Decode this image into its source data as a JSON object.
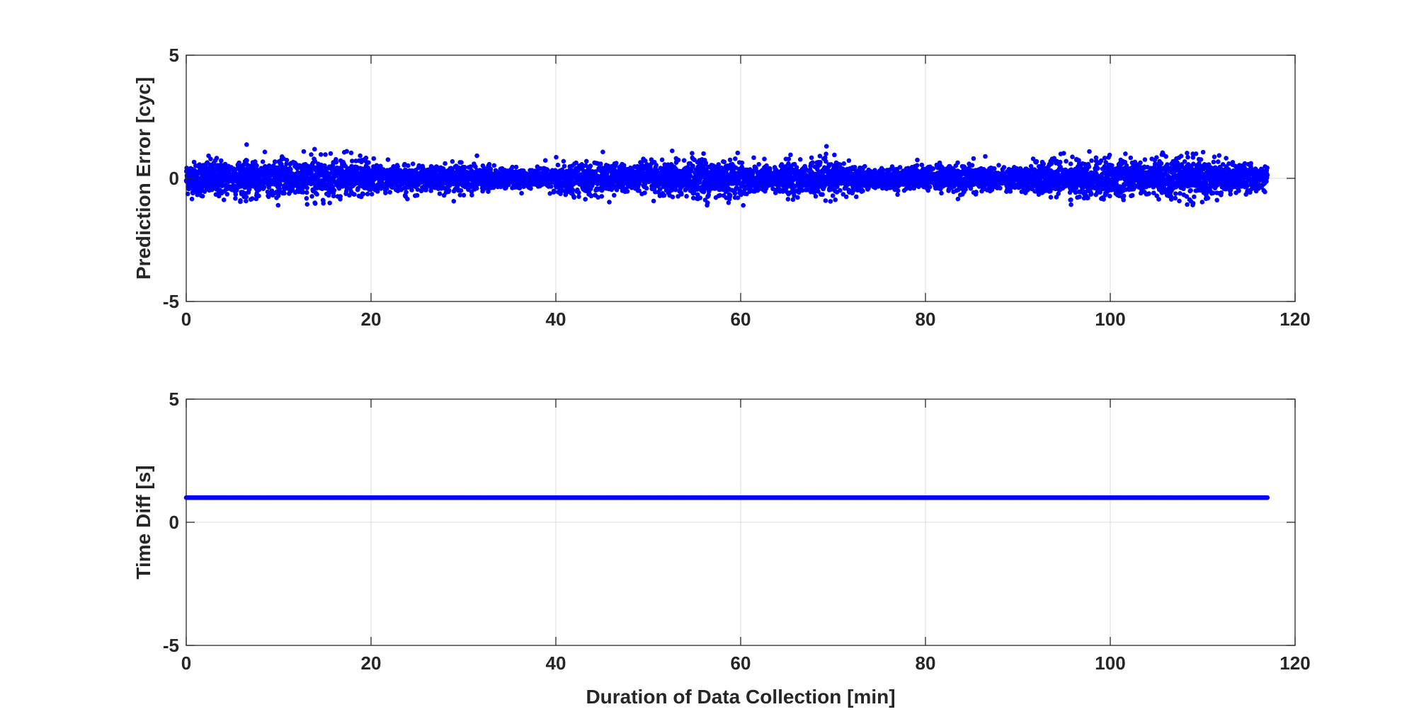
{
  "colors": {
    "series": "#0000ff",
    "axis": "#262626",
    "grid": "#dcdcdc",
    "background": "#ffffff"
  },
  "xlabel": "Duration of Data Collection [min]",
  "chart_data": [
    {
      "type": "scatter",
      "title": "",
      "xlabel": "",
      "ylabel": "Prediction Error [cyc]",
      "xlim": [
        0,
        120
      ],
      "ylim": [
        -5,
        5
      ],
      "xticks": [
        0,
        20,
        40,
        60,
        80,
        100,
        120
      ],
      "yticks": [
        -5,
        0,
        5
      ],
      "xtick_labels": [
        "0",
        "20",
        "40",
        "60",
        "80",
        "100",
        "120"
      ],
      "ytick_labels": [
        "-5",
        "0",
        "5"
      ],
      "grid": true,
      "series": [
        {
          "x_range": [
            0,
            117
          ],
          "x_step": 0.01667,
          "mean": 0.0,
          "std": 0.3,
          "min": -1.1,
          "max": 1.4,
          "marker": "filled-circle"
        }
      ]
    },
    {
      "type": "scatter",
      "title": "",
      "xlabel": "Duration of Data Collection [min]",
      "ylabel": "Time Diff [s]",
      "xlim": [
        0,
        120
      ],
      "ylim": [
        -5,
        5
      ],
      "xticks": [
        0,
        20,
        40,
        60,
        80,
        100,
        120
      ],
      "yticks": [
        -5,
        0,
        5
      ],
      "xtick_labels": [
        "0",
        "20",
        "40",
        "60",
        "80",
        "100",
        "120"
      ],
      "ytick_labels": [
        "-5",
        "0",
        "5"
      ],
      "grid": true,
      "series": [
        {
          "x_range": [
            0,
            117
          ],
          "value": 1,
          "marker": "filled-circle"
        }
      ]
    }
  ]
}
